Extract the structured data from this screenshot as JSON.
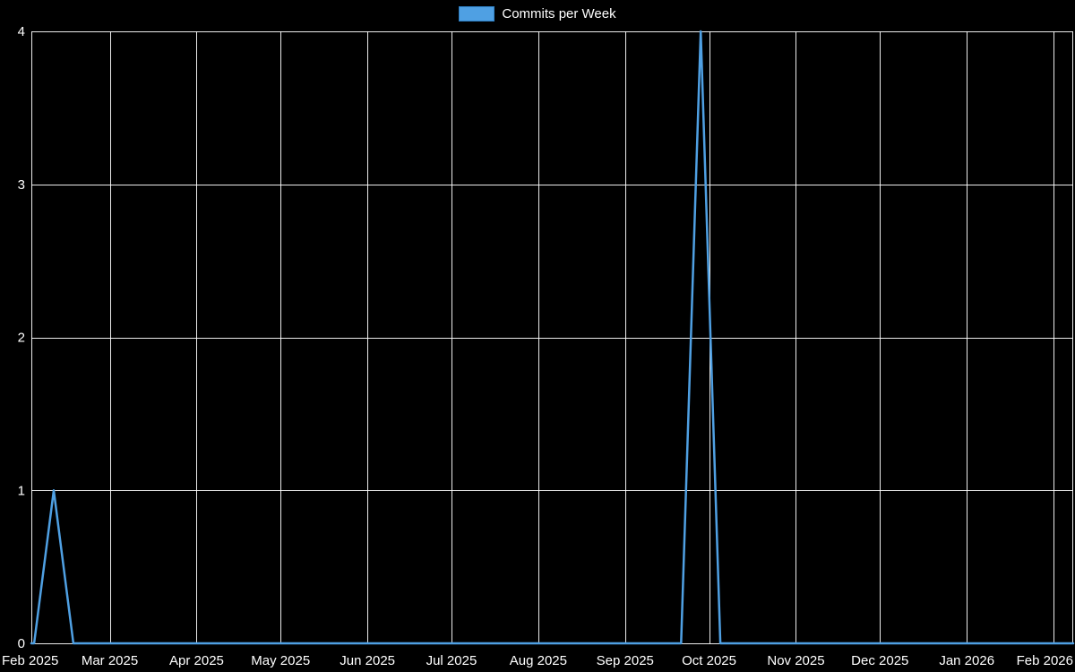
{
  "page": {
    "background": "#000000",
    "text_color": "#ffffff"
  },
  "legend": {
    "label": "Commits per Week",
    "swatch_color": "#4fa0e3",
    "swatch_border": "#2d7fc4"
  },
  "chart_data": {
    "type": "line",
    "title": "Commits per Week",
    "x_type": "time",
    "xlim": [
      "2025-02-01",
      "2026-02-08"
    ],
    "ylim": [
      0,
      4
    ],
    "yticks": [
      0,
      1,
      2,
      3,
      4
    ],
    "xticks": [
      {
        "label": "Feb 2025",
        "date": "2025-02-01"
      },
      {
        "label": "Mar 2025",
        "date": "2025-03-01"
      },
      {
        "label": "Apr 2025",
        "date": "2025-04-01"
      },
      {
        "label": "May 2025",
        "date": "2025-05-01"
      },
      {
        "label": "Jun 2025",
        "date": "2025-06-01"
      },
      {
        "label": "Jul 2025",
        "date": "2025-07-01"
      },
      {
        "label": "Aug 2025",
        "date": "2025-08-01"
      },
      {
        "label": "Sep 2025",
        "date": "2025-09-01"
      },
      {
        "label": "Oct 2025",
        "date": "2025-10-01"
      },
      {
        "label": "Nov 2025",
        "date": "2025-11-01"
      },
      {
        "label": "Dec 2025",
        "date": "2025-12-01"
      },
      {
        "label": "Jan 2026",
        "date": "2026-01-01"
      },
      {
        "label": "Feb 2026",
        "date": "2026-02-01"
      }
    ],
    "grid": true,
    "grid_color": "#ffffff",
    "line_color": "#4fa0e3",
    "line_width": 2.5,
    "series": [
      {
        "name": "Commits per Week",
        "points": [
          [
            "2025-02-01",
            0
          ],
          [
            "2025-02-02",
            0
          ],
          [
            "2025-02-09",
            1
          ],
          [
            "2025-02-16",
            0
          ],
          [
            "2025-09-21",
            0
          ],
          [
            "2025-09-28",
            4
          ],
          [
            "2025-10-05",
            0
          ],
          [
            "2026-02-08",
            0
          ]
        ]
      }
    ]
  }
}
